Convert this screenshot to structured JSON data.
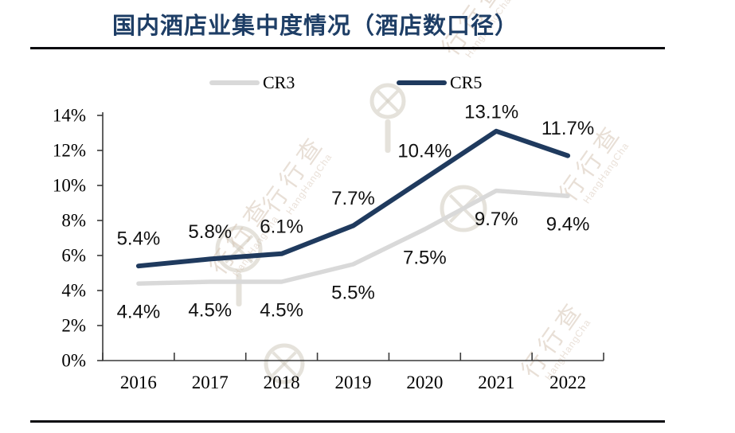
{
  "title": "国内酒店业集中度情况（酒店数口径）",
  "title_color": "#1e3e66",
  "rule_color": "#0a0a0f",
  "legend": [
    {
      "label": "CR3",
      "color": "#d9d9d9"
    },
    {
      "label": "CR5",
      "color": "#1f3a5e"
    }
  ],
  "watermark": {
    "text": "行行查",
    "subtext": "HangHangCha",
    "logo": "magnifier-x-icon"
  },
  "chart_data": {
    "type": "line",
    "title": "国内酒店业集中度情况（酒店数口径）",
    "categories": [
      "2016",
      "2017",
      "2018",
      "2019",
      "2020",
      "2021",
      "2022"
    ],
    "series": [
      {
        "name": "CR3",
        "color": "#d9d9d9",
        "values": [
          4.4,
          4.5,
          4.5,
          5.5,
          7.5,
          9.7,
          9.4
        ]
      },
      {
        "name": "CR5",
        "color": "#1f3a5e",
        "values": [
          5.4,
          5.8,
          6.1,
          7.7,
          10.4,
          13.1,
          11.7
        ]
      }
    ],
    "unit": "%",
    "ylim": [
      0,
      14
    ],
    "ytick_step": 2,
    "yticks": [
      "0%",
      "2%",
      "4%",
      "6%",
      "8%",
      "10%",
      "12%",
      "14%"
    ],
    "grid": false,
    "legend_position": "top",
    "data_labels": true,
    "axis_color": "#3a3a3a",
    "label_color": "#111111"
  }
}
